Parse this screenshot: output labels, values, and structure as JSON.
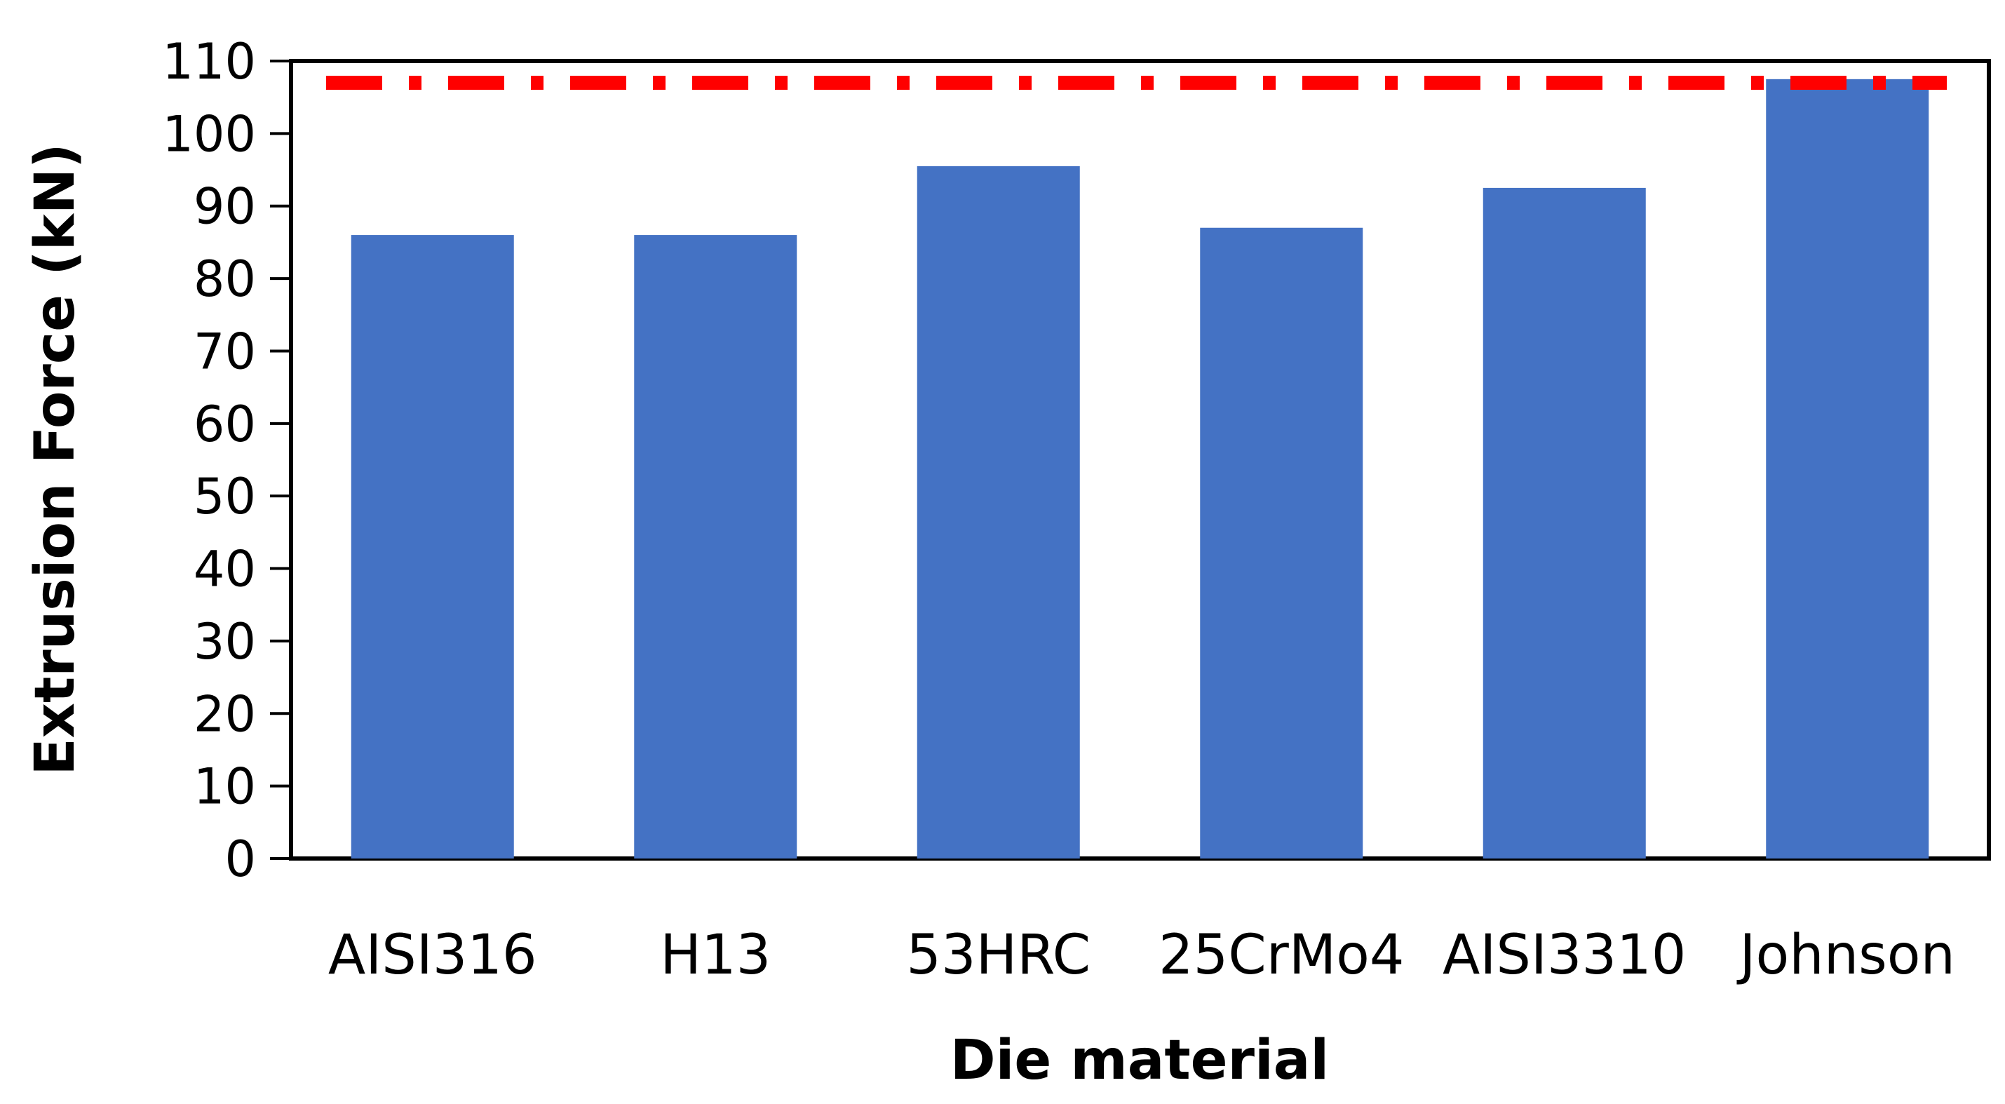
{
  "chart_data": {
    "type": "bar",
    "title": "",
    "xlabel": "Die material",
    "ylabel": "Extrusion Force (kN)",
    "categories": [
      "AISI316",
      "H13",
      "53HRC",
      "25CrMo4",
      "AISI3310",
      "Johnson"
    ],
    "values": [
      86,
      86,
      95.5,
      87,
      92.5,
      107.5
    ],
    "ylim": [
      0,
      110
    ],
    "yticks": [
      0,
      10,
      20,
      30,
      40,
      50,
      60,
      70,
      80,
      90,
      100,
      110
    ],
    "grid": false,
    "bar_color": "#4472C4",
    "reference_line": {
      "value": 107,
      "style": "dash-dot",
      "color": "#FF0000"
    }
  }
}
